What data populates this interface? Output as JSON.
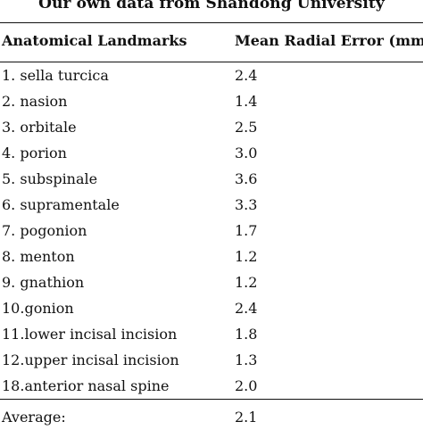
{
  "table": {
    "title": "Our own data from Shandong University",
    "headers": [
      "Anatomical Landmarks",
      "Mean Radial Error (mm)"
    ],
    "rows": [
      {
        "landmark": "1. sella turcica",
        "value": "2.4"
      },
      {
        "landmark": "2. nasion",
        "value": "1.4"
      },
      {
        "landmark": "3. orbitale",
        "value": "2.5"
      },
      {
        "landmark": "4. porion",
        "value": "3.0"
      },
      {
        "landmark": "5. subspinale",
        "value": "3.6"
      },
      {
        "landmark": "6. supramentale",
        "value": "3.3"
      },
      {
        "landmark": "7. pogonion",
        "value": "1.7"
      },
      {
        "landmark": "8. menton",
        "value": "1.2"
      },
      {
        "landmark": "9. gnathion",
        "value": "1.2"
      },
      {
        "landmark": "10.gonion",
        "value": "2.4"
      },
      {
        "landmark": "11.lower incisal incision",
        "value": "1.8"
      },
      {
        "landmark": "12.upper incisal incision",
        "value": "1.3"
      },
      {
        "landmark": "18.anterior nasal spine",
        "value": "2.0"
      }
    ],
    "average": {
      "label": "Average:",
      "value": "2.1"
    }
  }
}
